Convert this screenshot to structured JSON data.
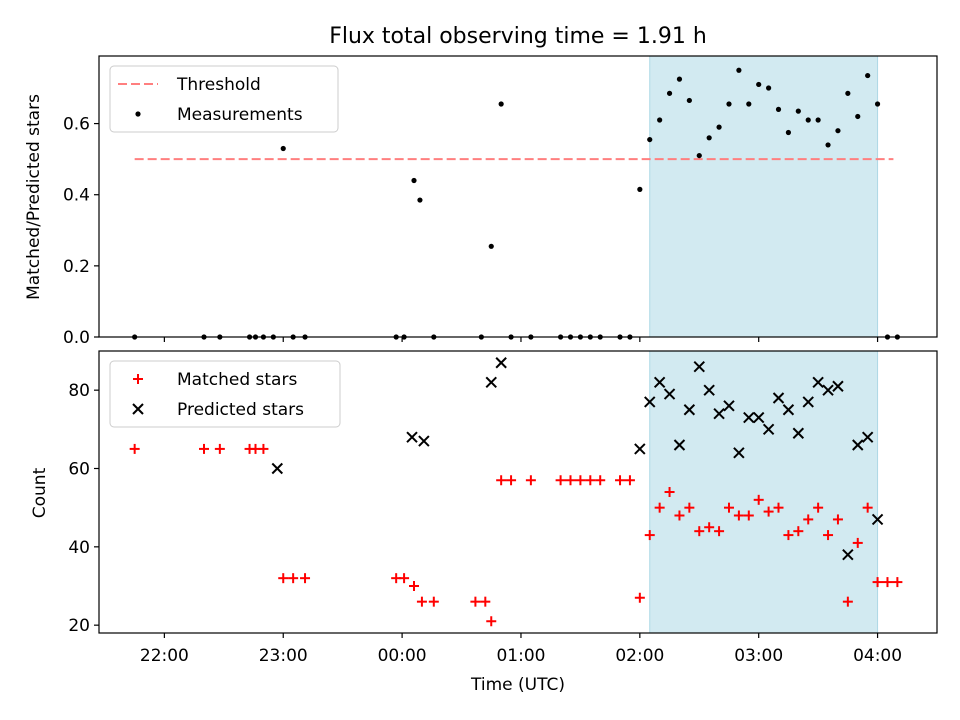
{
  "title": "Flux total observing time = 1.91 h",
  "colors": {
    "threshold": "#ff7f7f",
    "measurement": "#000000",
    "matched": "#ff0000",
    "predicted": "#000000",
    "shade": "#add8e6"
  },
  "chart_data": [
    {
      "type": "scatter",
      "panel": "top",
      "ylabel": "Matched/Predicted stars",
      "xlabel": "",
      "xlim": [
        "21:27",
        "04:30"
      ],
      "ylim": [
        0,
        0.79
      ],
      "yticks": [
        0.0,
        0.2,
        0.4,
        0.6
      ],
      "ytick_labels": [
        "0.0",
        "0.2",
        "0.4",
        "0.6"
      ],
      "xticks": [
        "22:00",
        "23:00",
        "00:00",
        "01:00",
        "02:00",
        "03:00",
        "04:00"
      ],
      "shaded_interval": [
        "02:05",
        "04:00"
      ],
      "grid": false,
      "legend": {
        "placement": "upper left",
        "entries": [
          "Threshold",
          "Measurements"
        ]
      },
      "threshold": {
        "name": "Threshold",
        "value": 0.5,
        "x_range": [
          "21:45",
          "04:08"
        ]
      },
      "series": [
        {
          "name": "Measurements",
          "x": [
            "21:45",
            "22:20",
            "22:28",
            "22:43",
            "22:46",
            "22:50",
            "22:55",
            "23:00",
            "23:05",
            "23:11",
            "23:57",
            "00:01",
            "00:06",
            "00:09",
            "00:16",
            "00:50",
            "00:45",
            "00:40",
            "00:55",
            "01:05",
            "01:20",
            "01:25",
            "01:30",
            "01:35",
            "01:40",
            "01:50",
            "01:55",
            "02:00",
            "02:05",
            "02:10",
            "02:15",
            "02:20",
            "02:25",
            "02:30",
            "02:35",
            "02:40",
            "02:45",
            "02:50",
            "02:55",
            "03:00",
            "03:05",
            "03:10",
            "03:15",
            "03:20",
            "03:25",
            "03:30",
            "03:35",
            "03:40",
            "03:45",
            "03:50",
            "03:55",
            "04:00",
            "04:05",
            "04:10"
          ],
          "y": [
            0,
            0,
            0,
            0,
            0,
            0,
            0,
            0.53,
            0,
            0,
            0,
            0,
            0.44,
            0.385,
            0,
            0.655,
            0.255,
            0,
            0,
            0,
            0,
            0,
            0,
            0,
            0,
            0,
            0,
            0.415,
            0.555,
            0.61,
            0.685,
            0.725,
            0.665,
            0.51,
            0.56,
            0.59,
            0.655,
            0.75,
            0.655,
            0.71,
            0.7,
            0.64,
            0.575,
            0.635,
            0.61,
            0.61,
            0.54,
            0.58,
            0.685,
            0.62,
            0.735,
            0.655,
            0,
            0
          ]
        }
      ]
    },
    {
      "type": "scatter",
      "panel": "bottom",
      "xlabel": "Time (UTC)",
      "ylabel": "Count",
      "xlim": [
        "21:27",
        "04:30"
      ],
      "ylim": [
        18,
        90
      ],
      "yticks": [
        20,
        40,
        60,
        80
      ],
      "ytick_labels": [
        "20",
        "40",
        "60",
        "80"
      ],
      "xticks": [
        "22:00",
        "23:00",
        "00:00",
        "01:00",
        "02:00",
        "03:00",
        "04:00"
      ],
      "xtick_labels": [
        "22:00",
        "23:00",
        "00:00",
        "01:00",
        "02:00",
        "03:00",
        "04:00"
      ],
      "shaded_interval": [
        "02:05",
        "04:00"
      ],
      "grid": false,
      "legend": {
        "placement": "upper left",
        "entries": [
          "Matched stars",
          "Predicted stars"
        ]
      },
      "series": [
        {
          "name": "Matched stars",
          "x": [
            "21:45",
            "22:20",
            "22:28",
            "22:43",
            "22:46",
            "22:50",
            "23:00",
            "23:05",
            "23:11",
            "23:57",
            "00:01",
            "00:06",
            "00:10",
            "00:16",
            "00:37",
            "00:42",
            "00:45",
            "00:50",
            "00:55",
            "01:05",
            "01:20",
            "01:25",
            "01:30",
            "01:35",
            "01:40",
            "01:50",
            "01:55",
            "02:00",
            "02:05",
            "02:10",
            "02:15",
            "02:20",
            "02:25",
            "02:30",
            "02:35",
            "02:40",
            "02:45",
            "02:50",
            "02:55",
            "03:00",
            "03:05",
            "03:10",
            "03:15",
            "03:20",
            "03:25",
            "03:30",
            "03:35",
            "03:40",
            "03:45",
            "03:50",
            "03:55",
            "04:00",
            "04:05",
            "04:10"
          ],
          "y": [
            65,
            65,
            65,
            65,
            65,
            65,
            32,
            32,
            32,
            32,
            32,
            30,
            26,
            26,
            26,
            26,
            21,
            57,
            57,
            57,
            57,
            57,
            57,
            57,
            57,
            57,
            57,
            27,
            43,
            50,
            54,
            48,
            50,
            44,
            45,
            44,
            50,
            48,
            48,
            52,
            49,
            50,
            43,
            44,
            47,
            50,
            43,
            47,
            26,
            41,
            50,
            31,
            31,
            31
          ]
        },
        {
          "name": "Predicted stars",
          "x": [
            "22:57",
            "00:05",
            "00:11",
            "00:45",
            "00:50",
            "02:00",
            "02:05",
            "02:10",
            "02:15",
            "02:20",
            "02:25",
            "02:30",
            "02:35",
            "02:40",
            "02:45",
            "02:50",
            "02:55",
            "03:00",
            "03:05",
            "03:10",
            "03:15",
            "03:20",
            "03:25",
            "03:30",
            "03:35",
            "03:40",
            "03:45",
            "03:50",
            "03:55",
            "04:00"
          ],
          "y": [
            60,
            68,
            67,
            82,
            87,
            65,
            77,
            82,
            79,
            66,
            75,
            86,
            80,
            74,
            76,
            64,
            73,
            73,
            70,
            78,
            75,
            69,
            77,
            82,
            80,
            81,
            38,
            66,
            68,
            47
          ]
        }
      ]
    }
  ]
}
